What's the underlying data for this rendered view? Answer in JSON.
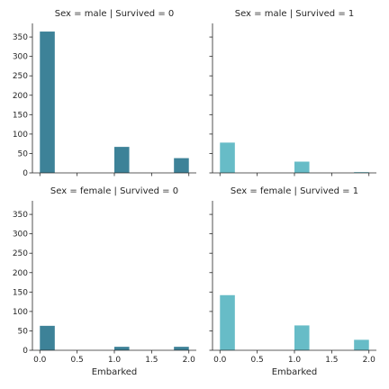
{
  "chart_data": {
    "type": "bar",
    "subtype": "histogram-facet-grid",
    "xlabel": "Embarked",
    "x_ticks": [
      0.0,
      0.5,
      1.0,
      1.5,
      2.0
    ],
    "x_tick_labels": [
      "0.0",
      "0.5",
      "1.0",
      "1.5",
      "2.0"
    ],
    "y_ticks": [
      0,
      50,
      100,
      150,
      200,
      250,
      300,
      350
    ],
    "y_tick_labels": [
      "0",
      "50",
      "100",
      "150",
      "200",
      "250",
      "300",
      "350"
    ],
    "xlim": [
      -0.1,
      2.1
    ],
    "ylim": [
      0,
      385
    ],
    "bin_edges": [
      0.0,
      0.2,
      0.4,
      0.6,
      0.8,
      1.0,
      1.2,
      1.4,
      1.6,
      1.8,
      2.0
    ],
    "sharex": true,
    "sharey": true,
    "grid": false,
    "colors": {
      "survived_0": "#3d8298",
      "survived_1": "#67bcc7",
      "text": "#262626"
    },
    "panels": [
      {
        "title": "Sex = male | Survived = 0",
        "color": "#3d8298",
        "values": [
          364,
          0,
          0,
          0,
          0,
          67,
          0,
          0,
          0,
          38
        ]
      },
      {
        "title": "Sex = male | Survived = 1",
        "color": "#67bcc7",
        "values": [
          78,
          0,
          0,
          0,
          0,
          29,
          0,
          0,
          0,
          2
        ]
      },
      {
        "title": "Sex = female | Survived = 0",
        "color": "#3d8298",
        "values": [
          63,
          0,
          0,
          0,
          0,
          9,
          0,
          0,
          0,
          9
        ]
      },
      {
        "title": "Sex = female | Survived = 1",
        "color": "#67bcc7",
        "values": [
          142,
          0,
          0,
          0,
          0,
          64,
          0,
          0,
          0,
          27
        ]
      }
    ]
  }
}
